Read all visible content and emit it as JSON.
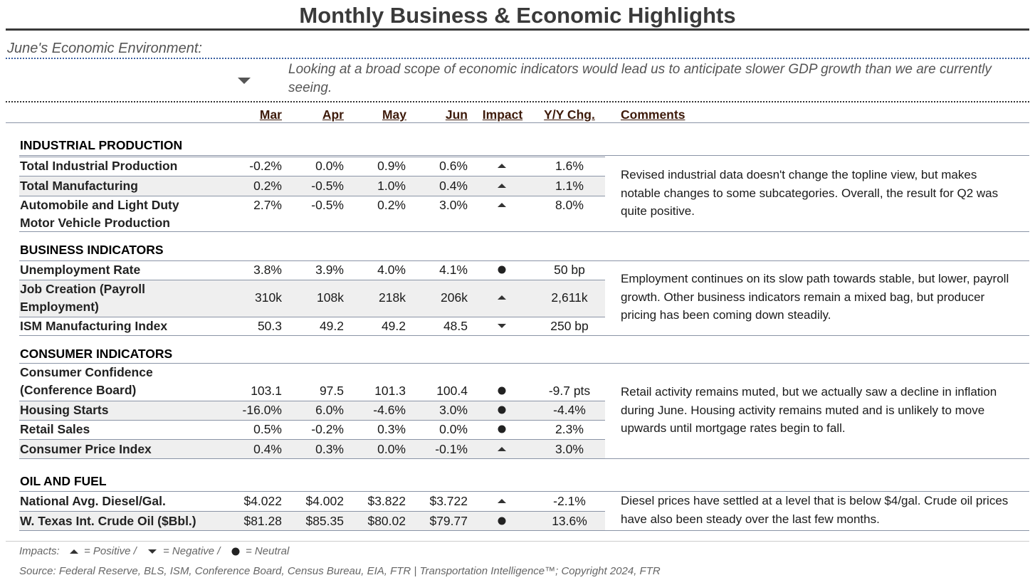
{
  "header": {
    "title": "Monthly Business & Economic Highlights",
    "subtitle": "June's Economic Environment:",
    "summary": [
      "Looking at a broad scope of economic indicators would lead us to anticipate slower GDP growth than we are currently",
      "seeing."
    ]
  },
  "columns": [
    "Mar",
    "Apr",
    "May",
    "Jun",
    "Impact",
    "Y/Y Chg.",
    "Comments"
  ],
  "sections": [
    {
      "title": "INDUSTRIAL PRODUCTION",
      "rows": [
        {
          "label": [
            "Total Industrial Production"
          ],
          "values": [
            "-0.2%",
            "0.0%",
            "0.9%",
            "0.6%"
          ],
          "yoy": "1.6%"
        },
        {
          "label": [
            "Total Manufacturing"
          ],
          "values": [
            "0.2%",
            "-0.5%",
            "1.0%",
            "0.4%"
          ],
          "yoy": "1.1%"
        },
        {
          "label": [
            "Automobile and Light Duty",
            "Motor Vehicle Production"
          ],
          "values": [
            "2.7%",
            "-0.5%",
            "0.2%",
            "3.0%"
          ],
          "yoy": "8.0%"
        }
      ],
      "comment": [
        "Revised industrial data doesn't change the topline view, but makes",
        "notable changes to some subcategories. Overall, the result for Q2 was",
        "quite positive."
      ]
    },
    {
      "title": "BUSINESS INDICATORS",
      "rows": [
        {
          "label": [
            "Unemployment Rate"
          ],
          "values": [
            "3.8%",
            "3.9%",
            "4.0%",
            "4.1%"
          ],
          "yoy": "50 bp"
        },
        {
          "label": [
            "Job Creation (Payroll",
            "Employment)"
          ],
          "values": [
            "310k",
            "108k",
            "218k",
            "206k"
          ],
          "yoy": "2,611k"
        },
        {
          "label": [
            "ISM Manufacturing Index"
          ],
          "values": [
            "50.3",
            "49.2",
            "49.2",
            "48.5"
          ],
          "yoy": "250 bp"
        }
      ],
      "comment": [
        "Employment continues on its slow path towards stable, but lower, payroll",
        "growth. Other business indicators remain a mixed bag, but producer",
        "pricing has been coming down steadily."
      ]
    },
    {
      "title": "CONSUMER INDICATORS",
      "rows": [
        {
          "label": [
            "Consumer Confidence",
            "(Conference Board)"
          ],
          "values": [
            "103.1",
            "97.5",
            "101.3",
            "100.4"
          ],
          "yoy": "-9.7 pts"
        },
        {
          "label": [
            "Housing Starts"
          ],
          "values": [
            "-16.0%",
            "6.0%",
            "-4.6%",
            "3.0%"
          ],
          "yoy": "-4.4%"
        },
        {
          "label": [
            "Retail Sales"
          ],
          "values": [
            "0.5%",
            "-0.2%",
            "0.3%",
            "0.0%"
          ],
          "yoy": "2.3%"
        },
        {
          "label": [
            "Consumer Price Index"
          ],
          "values": [
            "0.4%",
            "0.3%",
            "0.0%",
            "-0.1%"
          ],
          "yoy": "3.0%"
        }
      ],
      "comment": [
        "Retail activity remains muted, but we actually saw a decline in inflation",
        "during June. Housing activity remains muted and is unlikely to move",
        "upwards until mortgage rates begin to fall."
      ]
    },
    {
      "title": "OIL AND FUEL",
      "rows": [
        {
          "label": [
            "National Avg. Diesel/Gal."
          ],
          "values": [
            "$4.022",
            "$4.002",
            "$3.822",
            "$3.722"
          ],
          "yoy": "-2.1%"
        },
        {
          "label": [
            "W. Texas Int. Crude Oil ($Bbl.)"
          ],
          "values": [
            "$81.28",
            "$85.35",
            "$80.02",
            "$79.77"
          ],
          "yoy": "13.6%"
        }
      ],
      "comment": [
        "Diesel prices have settled at a level that is below $4/gal. Crude oil prices",
        "have also been steady over the last few months."
      ]
    }
  ],
  "footer": {
    "impacts": [
      "Impacts:",
      "= Positive /",
      "= Negative /",
      "= Neutral"
    ],
    "source": "Source: Federal Reserve, BLS, ISM, Conference Board, Census Bureau, EIA, FTR | Transportation Intelligence™; Copyright 2024, FTR"
  }
}
